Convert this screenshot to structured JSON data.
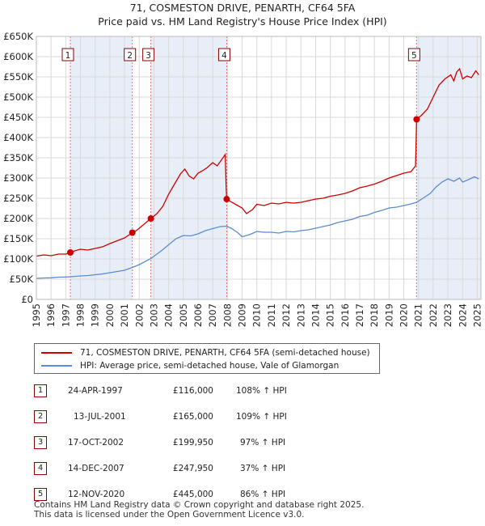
{
  "title_line1": "71, COSMESTON DRIVE, PENARTH, CF64 5FA",
  "title_line2": "Price paid vs. HM Land Registry's House Price Index (HPI)",
  "colors": {
    "property": "#cc0000",
    "hpi": "#5b8bd0",
    "band": "#e8eef8",
    "marker_line": "#e07070"
  },
  "legend": {
    "property": "71, COSMESTON DRIVE, PENARTH, CF64 5FA (semi-detached house)",
    "hpi": "HPI: Average price, semi-detached house, Vale of Glamorgan"
  },
  "sales": [
    {
      "num": "1",
      "date": "24-APR-1997",
      "price": "£116,000",
      "hpi": "108% ↑ HPI"
    },
    {
      "num": "2",
      "date": "13-JUL-2001",
      "price": "£165,000",
      "hpi": "109% ↑ HPI"
    },
    {
      "num": "3",
      "date": "17-OCT-2002",
      "price": "£199,950",
      "hpi": "97% ↑ HPI"
    },
    {
      "num": "4",
      "date": "14-DEC-2007",
      "price": "£247,950",
      "hpi": "37% ↑ HPI"
    },
    {
      "num": "5",
      "date": "12-NOV-2020",
      "price": "£445,000",
      "hpi": "86% ↑ HPI"
    }
  ],
  "footer_line1": "Contains HM Land Registry data © Crown copyright and database right 2025.",
  "footer_line2": "This data is licensed under the Open Government Licence v3.0.",
  "chart_data": {
    "type": "line",
    "title": "71, COSMESTON DRIVE, PENARTH, CF64 5FA — Price paid vs. HM Land Registry's House Price Index (HPI)",
    "xlabel": "",
    "ylabel": "",
    "xlim": [
      1995,
      2025.25
    ],
    "ylim": [
      0,
      650000
    ],
    "x_ticks": [
      "1995",
      "1996",
      "1997",
      "1998",
      "1999",
      "2000",
      "2001",
      "2002",
      "2003",
      "2004",
      "2005",
      "2006",
      "2007",
      "2008",
      "2009",
      "2010",
      "2011",
      "2012",
      "2013",
      "2014",
      "2015",
      "2016",
      "2017",
      "2018",
      "2019",
      "2020",
      "2021",
      "2022",
      "2023",
      "2024",
      "2025"
    ],
    "y_ticks": [
      {
        "v": 0,
        "label": "£0"
      },
      {
        "v": 50000,
        "label": "£50K"
      },
      {
        "v": 100000,
        "label": "£100K"
      },
      {
        "v": 150000,
        "label": "£150K"
      },
      {
        "v": 200000,
        "label": "£200K"
      },
      {
        "v": 250000,
        "label": "£250K"
      },
      {
        "v": 300000,
        "label": "£300K"
      },
      {
        "v": 350000,
        "label": "£350K"
      },
      {
        "v": 400000,
        "label": "£400K"
      },
      {
        "v": 450000,
        "label": "£450K"
      },
      {
        "v": 500000,
        "label": "£500K"
      },
      {
        "v": 550000,
        "label": "£550K"
      },
      {
        "v": 600000,
        "label": "£600K"
      },
      {
        "v": 650000,
        "label": "£650K"
      }
    ],
    "grid": true,
    "shaded_ranges": [
      [
        1997.31,
        2001.53
      ],
      [
        2002.79,
        2007.95
      ],
      [
        2020.87,
        2025.25
      ]
    ],
    "sale_markers": [
      {
        "label": "1",
        "x": 1997.31,
        "y": 116000
      },
      {
        "label": "2",
        "x": 2001.53,
        "y": 165000
      },
      {
        "label": "3",
        "x": 2002.79,
        "y": 199950
      },
      {
        "label": "4",
        "x": 2007.95,
        "y": 247950
      },
      {
        "label": "5",
        "x": 2020.87,
        "y": 445000
      }
    ],
    "series": [
      {
        "name": "71, COSMESTON DRIVE, PENARTH, CF64 5FA (semi-detached house)",
        "points": [
          [
            1995.0,
            107000
          ],
          [
            1995.5,
            110000
          ],
          [
            1996.0,
            108000
          ],
          [
            1996.5,
            112000
          ],
          [
            1997.0,
            112000
          ],
          [
            1997.31,
            116000
          ],
          [
            1997.6,
            120000
          ],
          [
            1998.0,
            124000
          ],
          [
            1998.5,
            122000
          ],
          [
            1999.0,
            126000
          ],
          [
            1999.5,
            130000
          ],
          [
            2000.0,
            138000
          ],
          [
            2000.5,
            145000
          ],
          [
            2001.0,
            152000
          ],
          [
            2001.53,
            165000
          ],
          [
            2001.8,
            170000
          ],
          [
            2002.2,
            182000
          ],
          [
            2002.79,
            199950
          ],
          [
            2003.2,
            212000
          ],
          [
            2003.6,
            230000
          ],
          [
            2004.0,
            260000
          ],
          [
            2004.4,
            285000
          ],
          [
            2004.8,
            310000
          ],
          [
            2005.1,
            322000
          ],
          [
            2005.4,
            305000
          ],
          [
            2005.7,
            298000
          ],
          [
            2006.0,
            312000
          ],
          [
            2006.3,
            318000
          ],
          [
            2006.6,
            325000
          ],
          [
            2007.0,
            338000
          ],
          [
            2007.3,
            330000
          ],
          [
            2007.6,
            345000
          ],
          [
            2007.85,
            358000
          ],
          [
            2007.92,
            270000
          ],
          [
            2007.95,
            247950
          ],
          [
            2008.3,
            240000
          ],
          [
            2008.7,
            232000
          ],
          [
            2009.0,
            226000
          ],
          [
            2009.3,
            212000
          ],
          [
            2009.7,
            222000
          ],
          [
            2010.0,
            235000
          ],
          [
            2010.5,
            232000
          ],
          [
            2011.0,
            238000
          ],
          [
            2011.5,
            236000
          ],
          [
            2012.0,
            240000
          ],
          [
            2012.5,
            238000
          ],
          [
            2013.0,
            240000
          ],
          [
            2013.5,
            244000
          ],
          [
            2014.0,
            248000
          ],
          [
            2014.5,
            250000
          ],
          [
            2015.0,
            255000
          ],
          [
            2015.5,
            258000
          ],
          [
            2016.0,
            262000
          ],
          [
            2016.5,
            268000
          ],
          [
            2017.0,
            276000
          ],
          [
            2017.5,
            280000
          ],
          [
            2018.0,
            285000
          ],
          [
            2018.5,
            292000
          ],
          [
            2019.0,
            300000
          ],
          [
            2019.5,
            306000
          ],
          [
            2020.0,
            312000
          ],
          [
            2020.5,
            316000
          ],
          [
            2020.8,
            330000
          ],
          [
            2020.87,
            445000
          ],
          [
            2021.2,
            455000
          ],
          [
            2021.6,
            470000
          ],
          [
            2022.0,
            500000
          ],
          [
            2022.4,
            530000
          ],
          [
            2022.8,
            545000
          ],
          [
            2023.2,
            555000
          ],
          [
            2023.4,
            540000
          ],
          [
            2023.6,
            562000
          ],
          [
            2023.8,
            570000
          ],
          [
            2024.0,
            545000
          ],
          [
            2024.3,
            552000
          ],
          [
            2024.6,
            548000
          ],
          [
            2024.9,
            565000
          ],
          [
            2025.1,
            555000
          ]
        ]
      },
      {
        "name": "HPI: Average price, semi-detached house, Vale of Glamorgan",
        "points": [
          [
            1995.0,
            52000
          ],
          [
            1995.5,
            53000
          ],
          [
            1996.0,
            53500
          ],
          [
            1996.5,
            55000
          ],
          [
            1997.0,
            55500
          ],
          [
            1997.31,
            56000
          ],
          [
            1998.0,
            58000
          ],
          [
            1998.5,
            59000
          ],
          [
            1999.0,
            61000
          ],
          [
            1999.5,
            63000
          ],
          [
            2000.0,
            66000
          ],
          [
            2000.5,
            69000
          ],
          [
            2001.0,
            72000
          ],
          [
            2001.53,
            79000
          ],
          [
            2002.0,
            86000
          ],
          [
            2002.79,
            101000
          ],
          [
            2003.2,
            112000
          ],
          [
            2003.6,
            123000
          ],
          [
            2004.0,
            135000
          ],
          [
            2004.5,
            150000
          ],
          [
            2005.0,
            158000
          ],
          [
            2005.5,
            157000
          ],
          [
            2006.0,
            162000
          ],
          [
            2006.5,
            170000
          ],
          [
            2007.0,
            175000
          ],
          [
            2007.5,
            180000
          ],
          [
            2007.95,
            181000
          ],
          [
            2008.3,
            175000
          ],
          [
            2008.7,
            165000
          ],
          [
            2009.0,
            155000
          ],
          [
            2009.5,
            160000
          ],
          [
            2010.0,
            168000
          ],
          [
            2010.5,
            166000
          ],
          [
            2011.0,
            166000
          ],
          [
            2011.5,
            164000
          ],
          [
            2012.0,
            168000
          ],
          [
            2012.5,
            167000
          ],
          [
            2013.0,
            170000
          ],
          [
            2013.5,
            172000
          ],
          [
            2014.0,
            176000
          ],
          [
            2014.5,
            180000
          ],
          [
            2015.0,
            184000
          ],
          [
            2015.5,
            190000
          ],
          [
            2016.0,
            194000
          ],
          [
            2016.5,
            198000
          ],
          [
            2017.0,
            205000
          ],
          [
            2017.5,
            208000
          ],
          [
            2018.0,
            215000
          ],
          [
            2018.5,
            220000
          ],
          [
            2019.0,
            226000
          ],
          [
            2019.5,
            228000
          ],
          [
            2020.0,
            232000
          ],
          [
            2020.5,
            236000
          ],
          [
            2020.87,
            240000
          ],
          [
            2021.3,
            250000
          ],
          [
            2021.8,
            262000
          ],
          [
            2022.2,
            278000
          ],
          [
            2022.6,
            290000
          ],
          [
            2023.0,
            298000
          ],
          [
            2023.4,
            292000
          ],
          [
            2023.8,
            300000
          ],
          [
            2024.0,
            290000
          ],
          [
            2024.4,
            296000
          ],
          [
            2024.8,
            303000
          ],
          [
            2025.1,
            298000
          ]
        ]
      }
    ]
  }
}
